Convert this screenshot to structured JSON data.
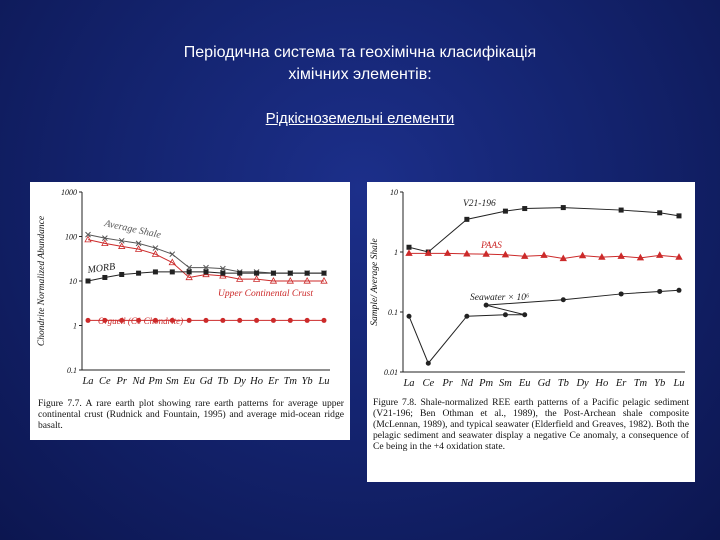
{
  "slide": {
    "title_line1": "Періодична система та геохімічна класифікація",
    "title_line2": "хімічних элементів:",
    "subtitle": "Рідкісноземельні елементи"
  },
  "colors": {
    "background": "#142470",
    "red_series": "#cc2a2a",
    "black_series": "#222222"
  },
  "chart_data": [
    {
      "type": "line",
      "scale": "log",
      "ylabel": "Chondrite Normalized Abundance",
      "ylim": [
        0.1,
        1000
      ],
      "y_ticks": [
        "1000",
        "100",
        "10",
        "1",
        "0.1"
      ],
      "categories": [
        "La",
        "Ce",
        "Pr",
        "Nd",
        "Pm",
        "Sm",
        "Eu",
        "Gd",
        "Tb",
        "Dy",
        "Ho",
        "Er",
        "Tm",
        "Yb",
        "Lu"
      ],
      "series": [
        {
          "name": "Average Shale",
          "color": "#555555",
          "marker": "x",
          "values": [
            110,
            92,
            80,
            70,
            55,
            40,
            20,
            20,
            19,
            16,
            16,
            15,
            15,
            15,
            15
          ]
        },
        {
          "name": "Upper Continental Crust",
          "color": "#cc2a2a",
          "marker": "triangle",
          "values": [
            85,
            70,
            60,
            52,
            40,
            26,
            12,
            14,
            13,
            11,
            11,
            10,
            10,
            10,
            10
          ]
        },
        {
          "name": "MORB",
          "color": "#222222",
          "marker": "square",
          "values": [
            10,
            12,
            14,
            15,
            16,
            16,
            16,
            16,
            15,
            15,
            15,
            15,
            15,
            15,
            15
          ]
        },
        {
          "name": "Orgueil (C1 Chondrite)",
          "color": "#cc2a2a",
          "marker": "circle",
          "values": [
            1.3,
            1.3,
            1.3,
            1.3,
            1.3,
            1.3,
            1.3,
            1.3,
            1.3,
            1.3,
            1.3,
            1.3,
            1.3,
            1.3,
            1.3
          ]
        }
      ],
      "caption": "Figure 7.7.  A rare earth plot showing rare earth patterns for average upper continental crust (Rudnick and Fountain, 1995) and average mid-ocean ridge basalt."
    },
    {
      "type": "line",
      "scale": "log",
      "ylabel": "Sample/ Average Shale",
      "ylim": [
        0.01,
        10
      ],
      "y_ticks": [
        "10",
        "1",
        "0.1",
        "0.01"
      ],
      "categories": [
        "La",
        "Ce",
        "Pr",
        "Nd",
        "Pm",
        "Sm",
        "Eu",
        "Gd",
        "Tb",
        "Dy",
        "Ho",
        "Er",
        "Tm",
        "Yb",
        "Lu"
      ],
      "series": [
        {
          "name": "V21-196",
          "color": "#222222",
          "marker": "square",
          "x": [
            "La",
            "Ce",
            "Nd",
            "Sm",
            "Eu",
            "Tb",
            "Er",
            "Yb",
            "Lu"
          ],
          "values": [
            1.2,
            1.0,
            3.5,
            4.8,
            5.3,
            5.5,
            5.0,
            4.5,
            4.0
          ]
        },
        {
          "name": "PAAS",
          "color": "#cc2a2a",
          "marker": "triangle",
          "x": [
            "La",
            "Ce",
            "Pr",
            "Nd",
            "Pm",
            "Sm",
            "Eu",
            "Gd",
            "Tb",
            "Dy",
            "Ho",
            "Er",
            "Tm",
            "Yb",
            "Lu"
          ],
          "values": [
            0.95,
            0.95,
            0.95,
            0.93,
            0.92,
            0.9,
            0.85,
            0.88,
            0.78,
            0.87,
            0.82,
            0.85,
            0.8,
            0.88,
            0.82
          ]
        },
        {
          "name": "Seawater × 10⁶",
          "color": "#222222",
          "marker": "circle",
          "x": [
            "La",
            "Ce",
            "Nd",
            "Sm",
            "Eu",
            "Pm",
            "Tb",
            "Er",
            "Yb",
            "Lu"
          ],
          "values": [
            0.085,
            0.014,
            0.085,
            0.09,
            0.09,
            0.13,
            0.16,
            0.2,
            0.22,
            0.23
          ]
        }
      ],
      "caption": "Figure 7.8.  Shale-normalized REE earth patterns of a Pacific pelagic sediment (V21-196; Ben Othman et al., 1989), the Post-Archean shale composite (McLennan, 1989), and typical seawater (Elderfield and Greaves, 1982).  Both the pelagic sediment and seawater display a negative Ce anomaly, a consequence of Ce being in the +4 oxidation state."
    }
  ]
}
